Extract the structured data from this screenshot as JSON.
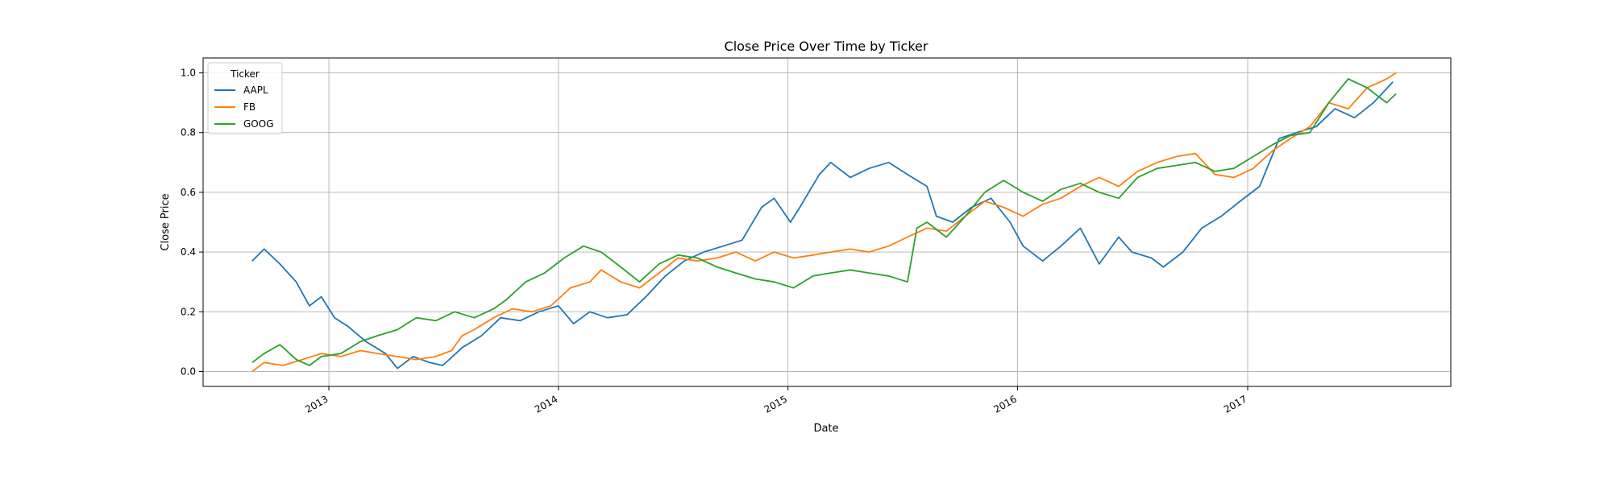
{
  "chart_data": {
    "type": "line",
    "title": "Close Price Over Time by Ticker",
    "xlabel": "Date",
    "ylabel": "Close Price",
    "ylim": [
      -0.05,
      1.05
    ],
    "xlim": [
      "2012-06-15",
      "2017-11-20"
    ],
    "x_ticks": [
      "2013",
      "2014",
      "2015",
      "2016",
      "2017"
    ],
    "y_ticks": [
      "0.0",
      "0.2",
      "0.4",
      "0.6",
      "0.8",
      "1.0"
    ],
    "grid": true,
    "legend": {
      "title": "Ticker",
      "placement": "upper-left"
    },
    "colors": {
      "AAPL": "#1f77b4",
      "FB": "#ff7f0e",
      "GOOG": "#2ca02c"
    },
    "series": [
      {
        "name": "AAPL",
        "color": "#1f77b4",
        "points": [
          [
            "2012-09-01",
            0.37
          ],
          [
            "2012-09-20",
            0.41
          ],
          [
            "2012-10-15",
            0.36
          ],
          [
            "2012-11-10",
            0.3
          ],
          [
            "2012-12-01",
            0.22
          ],
          [
            "2012-12-20",
            0.25
          ],
          [
            "2013-01-10",
            0.18
          ],
          [
            "2013-02-01",
            0.15
          ],
          [
            "2013-03-01",
            0.1
          ],
          [
            "2013-04-01",
            0.06
          ],
          [
            "2013-04-20",
            0.01
          ],
          [
            "2013-05-15",
            0.05
          ],
          [
            "2013-06-10",
            0.03
          ],
          [
            "2013-07-01",
            0.02
          ],
          [
            "2013-08-01",
            0.08
          ],
          [
            "2013-09-01",
            0.12
          ],
          [
            "2013-10-01",
            0.18
          ],
          [
            "2013-11-01",
            0.17
          ],
          [
            "2013-12-01",
            0.2
          ],
          [
            "2014-01-01",
            0.22
          ],
          [
            "2014-01-25",
            0.16
          ],
          [
            "2014-02-20",
            0.2
          ],
          [
            "2014-03-20",
            0.18
          ],
          [
            "2014-04-20",
            0.19
          ],
          [
            "2014-05-20",
            0.25
          ],
          [
            "2014-06-20",
            0.32
          ],
          [
            "2014-07-20",
            0.37
          ],
          [
            "2014-08-20",
            0.4
          ],
          [
            "2014-09-20",
            0.42
          ],
          [
            "2014-10-20",
            0.44
          ],
          [
            "2014-11-20",
            0.55
          ],
          [
            "2014-12-10",
            0.58
          ],
          [
            "2015-01-05",
            0.5
          ],
          [
            "2015-01-20",
            0.55
          ],
          [
            "2015-02-20",
            0.66
          ],
          [
            "2015-03-10",
            0.7
          ],
          [
            "2015-04-10",
            0.65
          ],
          [
            "2015-05-10",
            0.68
          ],
          [
            "2015-06-10",
            0.7
          ],
          [
            "2015-07-10",
            0.66
          ],
          [
            "2015-08-10",
            0.62
          ],
          [
            "2015-08-25",
            0.52
          ],
          [
            "2015-09-20",
            0.5
          ],
          [
            "2015-10-20",
            0.55
          ],
          [
            "2015-11-20",
            0.58
          ],
          [
            "2015-12-20",
            0.5
          ],
          [
            "2016-01-10",
            0.42
          ],
          [
            "2016-02-10",
            0.37
          ],
          [
            "2016-03-10",
            0.42
          ],
          [
            "2016-04-10",
            0.48
          ],
          [
            "2016-05-10",
            0.36
          ],
          [
            "2016-06-10",
            0.45
          ],
          [
            "2016-07-01",
            0.4
          ],
          [
            "2016-08-01",
            0.38
          ],
          [
            "2016-08-20",
            0.35
          ],
          [
            "2016-09-20",
            0.4
          ],
          [
            "2016-10-20",
            0.48
          ],
          [
            "2016-11-20",
            0.52
          ],
          [
            "2016-12-20",
            0.57
          ],
          [
            "2017-01-20",
            0.62
          ],
          [
            "2017-02-20",
            0.78
          ],
          [
            "2017-03-20",
            0.8
          ],
          [
            "2017-04-20",
            0.82
          ],
          [
            "2017-05-20",
            0.88
          ],
          [
            "2017-06-20",
            0.85
          ],
          [
            "2017-07-20",
            0.9
          ],
          [
            "2017-08-20",
            0.97
          ]
        ]
      },
      {
        "name": "FB",
        "color": "#ff7f0e",
        "points": [
          [
            "2012-09-01",
            0.0
          ],
          [
            "2012-09-20",
            0.03
          ],
          [
            "2012-10-20",
            0.02
          ],
          [
            "2012-11-20",
            0.04
          ],
          [
            "2012-12-20",
            0.06
          ],
          [
            "2013-01-20",
            0.05
          ],
          [
            "2013-02-20",
            0.07
          ],
          [
            "2013-03-20",
            0.06
          ],
          [
            "2013-04-20",
            0.05
          ],
          [
            "2013-05-20",
            0.04
          ],
          [
            "2013-06-20",
            0.05
          ],
          [
            "2013-07-15",
            0.07
          ],
          [
            "2013-08-01",
            0.12
          ],
          [
            "2013-08-20",
            0.14
          ],
          [
            "2013-09-20",
            0.18
          ],
          [
            "2013-10-20",
            0.21
          ],
          [
            "2013-11-20",
            0.2
          ],
          [
            "2013-12-20",
            0.22
          ],
          [
            "2014-01-20",
            0.28
          ],
          [
            "2014-02-20",
            0.3
          ],
          [
            "2014-03-10",
            0.34
          ],
          [
            "2014-04-10",
            0.3
          ],
          [
            "2014-05-10",
            0.28
          ],
          [
            "2014-06-10",
            0.33
          ],
          [
            "2014-07-10",
            0.38
          ],
          [
            "2014-08-10",
            0.37
          ],
          [
            "2014-09-10",
            0.38
          ],
          [
            "2014-10-10",
            0.4
          ],
          [
            "2014-11-10",
            0.37
          ],
          [
            "2014-12-10",
            0.4
          ],
          [
            "2015-01-10",
            0.38
          ],
          [
            "2015-02-10",
            0.39
          ],
          [
            "2015-03-10",
            0.4
          ],
          [
            "2015-04-10",
            0.41
          ],
          [
            "2015-05-10",
            0.4
          ],
          [
            "2015-06-10",
            0.42
          ],
          [
            "2015-07-10",
            0.45
          ],
          [
            "2015-08-10",
            0.48
          ],
          [
            "2015-09-10",
            0.47
          ],
          [
            "2015-10-10",
            0.52
          ],
          [
            "2015-11-10",
            0.57
          ],
          [
            "2015-12-10",
            0.55
          ],
          [
            "2016-01-10",
            0.52
          ],
          [
            "2016-02-10",
            0.56
          ],
          [
            "2016-03-10",
            0.58
          ],
          [
            "2016-04-10",
            0.62
          ],
          [
            "2016-05-10",
            0.65
          ],
          [
            "2016-06-10",
            0.62
          ],
          [
            "2016-07-10",
            0.67
          ],
          [
            "2016-08-10",
            0.7
          ],
          [
            "2016-09-10",
            0.72
          ],
          [
            "2016-10-10",
            0.73
          ],
          [
            "2016-11-10",
            0.66
          ],
          [
            "2016-12-10",
            0.65
          ],
          [
            "2017-01-10",
            0.68
          ],
          [
            "2017-02-10",
            0.74
          ],
          [
            "2017-03-10",
            0.78
          ],
          [
            "2017-04-10",
            0.82
          ],
          [
            "2017-05-10",
            0.9
          ],
          [
            "2017-06-10",
            0.88
          ],
          [
            "2017-07-10",
            0.95
          ],
          [
            "2017-08-10",
            0.98
          ],
          [
            "2017-08-25",
            1.0
          ]
        ]
      },
      {
        "name": "GOOG",
        "color": "#2ca02c",
        "points": [
          [
            "2012-09-01",
            0.03
          ],
          [
            "2012-09-20",
            0.06
          ],
          [
            "2012-10-15",
            0.09
          ],
          [
            "2012-11-10",
            0.04
          ],
          [
            "2012-12-01",
            0.02
          ],
          [
            "2012-12-20",
            0.05
          ],
          [
            "2013-01-20",
            0.06
          ],
          [
            "2013-02-20",
            0.1
          ],
          [
            "2013-03-20",
            0.12
          ],
          [
            "2013-04-20",
            0.14
          ],
          [
            "2013-05-20",
            0.18
          ],
          [
            "2013-06-20",
            0.17
          ],
          [
            "2013-07-20",
            0.2
          ],
          [
            "2013-08-20",
            0.18
          ],
          [
            "2013-09-20",
            0.21
          ],
          [
            "2013-10-10",
            0.24
          ],
          [
            "2013-11-10",
            0.3
          ],
          [
            "2013-12-10",
            0.33
          ],
          [
            "2014-01-10",
            0.38
          ],
          [
            "2014-02-10",
            0.42
          ],
          [
            "2014-03-10",
            0.4
          ],
          [
            "2014-04-10",
            0.35
          ],
          [
            "2014-05-10",
            0.3
          ],
          [
            "2014-06-10",
            0.36
          ],
          [
            "2014-07-10",
            0.39
          ],
          [
            "2014-08-10",
            0.38
          ],
          [
            "2014-09-10",
            0.35
          ],
          [
            "2014-10-10",
            0.33
          ],
          [
            "2014-11-10",
            0.31
          ],
          [
            "2014-12-10",
            0.3
          ],
          [
            "2015-01-10",
            0.28
          ],
          [
            "2015-02-10",
            0.32
          ],
          [
            "2015-03-10",
            0.33
          ],
          [
            "2015-04-10",
            0.34
          ],
          [
            "2015-05-10",
            0.33
          ],
          [
            "2015-06-10",
            0.32
          ],
          [
            "2015-07-10",
            0.3
          ],
          [
            "2015-07-25",
            0.48
          ],
          [
            "2015-08-10",
            0.5
          ],
          [
            "2015-09-10",
            0.45
          ],
          [
            "2015-10-10",
            0.52
          ],
          [
            "2015-11-10",
            0.6
          ],
          [
            "2015-12-10",
            0.64
          ],
          [
            "2016-01-10",
            0.6
          ],
          [
            "2016-02-10",
            0.57
          ],
          [
            "2016-03-10",
            0.61
          ],
          [
            "2016-04-10",
            0.63
          ],
          [
            "2016-05-10",
            0.6
          ],
          [
            "2016-06-10",
            0.58
          ],
          [
            "2016-07-10",
            0.65
          ],
          [
            "2016-08-10",
            0.68
          ],
          [
            "2016-09-10",
            0.69
          ],
          [
            "2016-10-10",
            0.7
          ],
          [
            "2016-11-10",
            0.67
          ],
          [
            "2016-12-10",
            0.68
          ],
          [
            "2017-01-10",
            0.72
          ],
          [
            "2017-02-10",
            0.76
          ],
          [
            "2017-03-10",
            0.79
          ],
          [
            "2017-04-10",
            0.8
          ],
          [
            "2017-05-10",
            0.9
          ],
          [
            "2017-06-10",
            0.98
          ],
          [
            "2017-07-10",
            0.95
          ],
          [
            "2017-08-10",
            0.9
          ],
          [
            "2017-08-25",
            0.93
          ]
        ]
      }
    ]
  }
}
